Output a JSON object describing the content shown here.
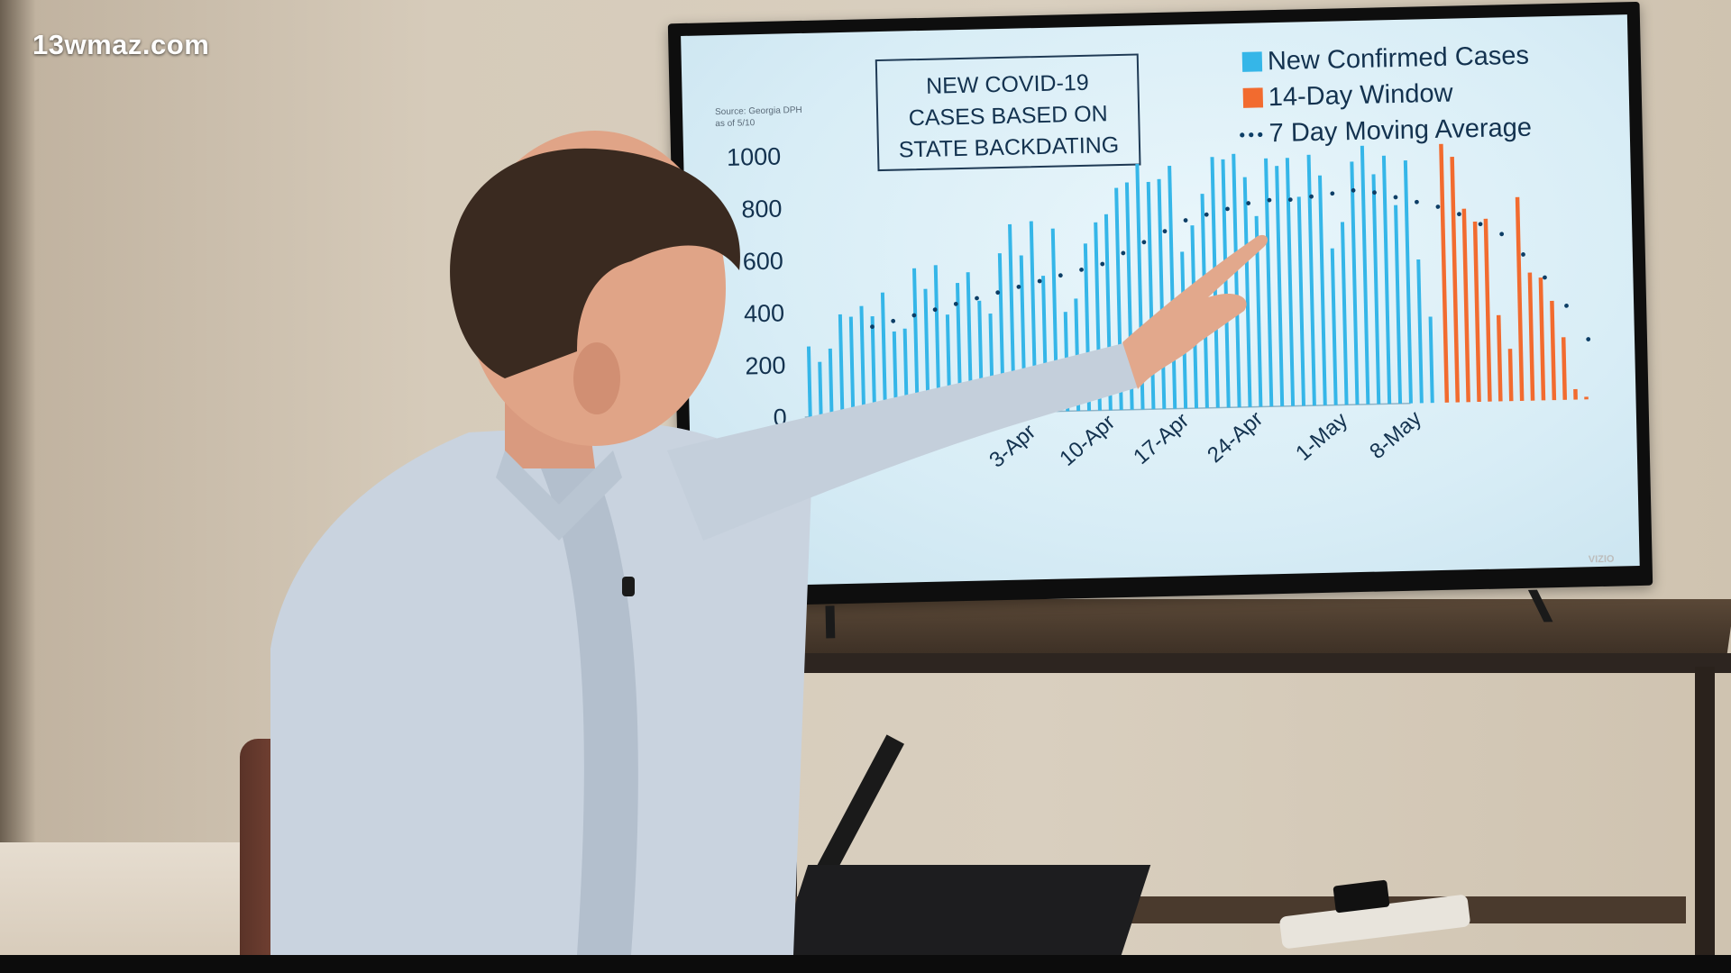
{
  "watermark": "13wmaz.com",
  "chart_data": {
    "type": "bar",
    "title": "NEW COVID-19 CASES BASED ON STATE BACKDATING",
    "title_lines": [
      "NEW COVID-19",
      "CASES BASED ON",
      "STATE BACKDATING"
    ],
    "source_lines": [
      "Source: Georgia DPH",
      "as of 5/10"
    ],
    "legend": [
      {
        "label": "New Confirmed Cases",
        "color": "#35b6e8",
        "marker": "square"
      },
      {
        "label": "14-Day Window",
        "color": "#f26b2f",
        "marker": "square"
      },
      {
        "label": "7 Day Moving Average",
        "color": "#0d3e66",
        "marker": "dots"
      }
    ],
    "legend_placement": "top-right",
    "y_ticks": [
      "1000",
      "800",
      "600",
      "400",
      "200",
      "0"
    ],
    "ylim": [
      0,
      1000
    ],
    "x_tick_labels": [
      "3-Apr",
      "10-Apr",
      "17-Apr",
      "24-Apr",
      "1-May",
      "8-May"
    ],
    "grid": false,
    "series": [
      {
        "name": "New Confirmed Cases",
        "color": "#35b6e8",
        "values": [
          270,
          210,
          260,
          390,
          380,
          420,
          380,
          470,
          320,
          330,
          560,
          480,
          570,
          380,
          500,
          540,
          430,
          380,
          610,
          720,
          600,
          730,
          520,
          700,
          380,
          430,
          640,
          720,
          750,
          850,
          870,
          940,
          870,
          880,
          930,
          600,
          700,
          820,
          960,
          950,
          970,
          880,
          730,
          950,
          920,
          950,
          800,
          960,
          880,
          600,
          700,
          930,
          990,
          880,
          950,
          760,
          930,
          550,
          330
        ]
      },
      {
        "name": "14-Day Window",
        "color": "#f26b2f",
        "values": [
          990,
          940,
          740,
          690,
          700,
          330,
          200,
          780,
          490,
          470,
          380,
          240,
          40,
          10
        ]
      },
      {
        "name": "7 Day Moving Average",
        "color": "#0d3e66",
        "values": [
          340,
          360,
          380,
          400,
          420,
          440,
          460,
          480,
          500,
          520,
          540,
          560,
          600,
          640,
          680,
          720,
          740,
          760,
          780,
          790,
          790,
          800,
          810,
          820,
          810,
          790,
          770,
          750,
          720,
          680,
          640,
          560,
          470,
          360,
          230
        ]
      }
    ]
  }
}
